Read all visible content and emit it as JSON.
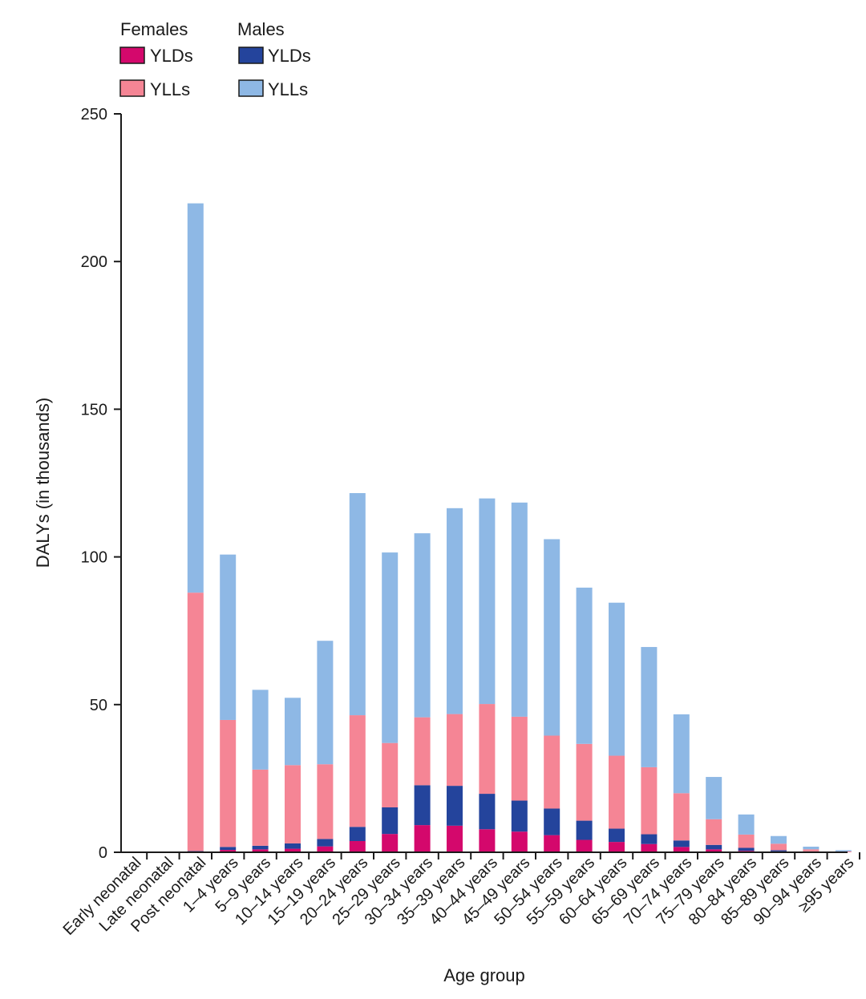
{
  "chart_data": {
    "type": "bar",
    "stacked": true,
    "title": "",
    "xlabel": "Age group",
    "ylabel": "DALYs (in thousands)",
    "ylim": [
      0,
      250
    ],
    "yticks": [
      0,
      50,
      100,
      150,
      200,
      250
    ],
    "grid": false,
    "legend": {
      "placement": "top-left",
      "groups": [
        {
          "title": "Females",
          "entries": [
            "YLDs",
            "YLLs"
          ]
        },
        {
          "title": "Males",
          "entries": [
            "YLDs",
            "YLLs"
          ]
        }
      ]
    },
    "categories": [
      "Early neonatal",
      "Late neonatal",
      "Post neonatal",
      "1–4 years",
      "5–9 years",
      "10–14 years",
      "15–19 years",
      "20–24 years",
      "25–29 years",
      "30–34 years",
      "35–39 years",
      "40–44 years",
      "45–49 years",
      "50–54 years",
      "55–59 years",
      "60–64 years",
      "65–69 years",
      "70–74 years",
      "75–79 years",
      "80–84 years",
      "85–89 years",
      "90–94 years",
      "≥95 years"
    ],
    "series": [
      {
        "name": "YLDs",
        "group": "Females",
        "color": "#d4086c",
        "values": [
          0,
          0,
          0.2,
          0.8,
          1.0,
          1.2,
          2.0,
          3.8,
          6.2,
          9.2,
          9.0,
          7.8,
          7.0,
          5.8,
          4.2,
          3.5,
          2.8,
          1.8,
          1.0,
          0.5,
          0.3,
          0.1,
          0
        ]
      },
      {
        "name": "YLDs",
        "group": "Males",
        "color": "#24449c",
        "values": [
          0,
          0,
          0.2,
          1.0,
          1.2,
          1.8,
          2.5,
          4.8,
          9.0,
          13.5,
          13.5,
          12.0,
          10.5,
          9.0,
          6.5,
          4.5,
          3.3,
          2.2,
          1.5,
          1.0,
          0.4,
          0.2,
          0
        ]
      },
      {
        "name": "YLLs",
        "group": "Females",
        "color": "#f58595",
        "values": [
          0,
          0,
          87.5,
          43.0,
          25.8,
          26.5,
          25.3,
          37.8,
          21.8,
          23.0,
          24.3,
          30.4,
          28.4,
          24.7,
          26.0,
          24.7,
          22.7,
          16.0,
          8.7,
          4.5,
          2.2,
          0.7,
          0.3
        ]
      },
      {
        "name": "YLLs",
        "group": "Males",
        "color": "#8eb8e5",
        "values": [
          0,
          0,
          131.8,
          56.0,
          27.0,
          22.8,
          41.8,
          75.2,
          64.5,
          62.3,
          69.7,
          69.6,
          72.5,
          66.5,
          52.9,
          51.8,
          40.7,
          26.7,
          14.3,
          6.8,
          2.6,
          0.9,
          0.4
        ]
      }
    ]
  }
}
